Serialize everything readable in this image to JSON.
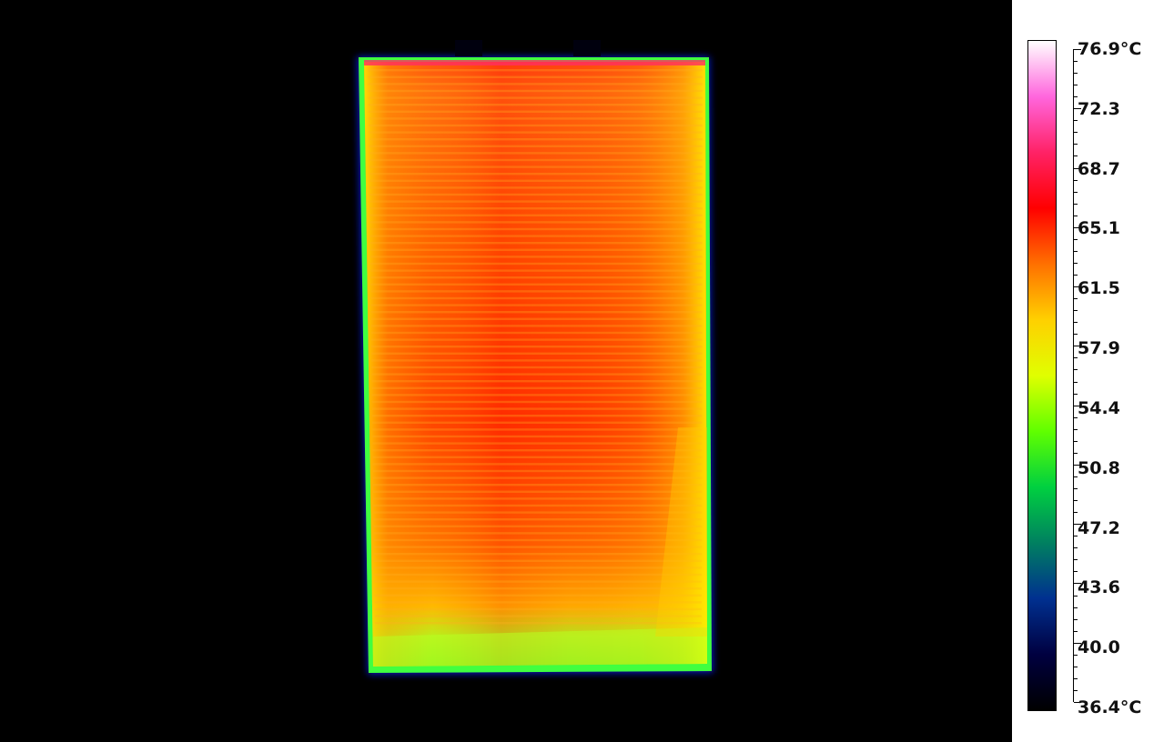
{
  "thermal_image": {
    "background_color": "#000000",
    "panel_colors": [
      "#ff2a00",
      "#ff6a00",
      "#ffb000",
      "#e8e800",
      "#6aff00"
    ]
  },
  "color_scale": {
    "unit": "°C",
    "max_label": "76.9°C",
    "min_label": "36.4°C",
    "labels": [
      "76.9°C",
      "72.3",
      "68.7",
      "65.1",
      "61.5",
      "57.9",
      "54.4",
      "50.8",
      "47.2",
      "43.6",
      "40.0",
      "36.4°C"
    ],
    "gradient_stops": [
      "#ffffff",
      "#ff66dd",
      "#ff2266",
      "#ff0000",
      "#ff7000",
      "#ffd000",
      "#e0ff00",
      "#60ff00",
      "#00d040",
      "#008060",
      "#003090",
      "#000040",
      "#000000"
    ]
  }
}
